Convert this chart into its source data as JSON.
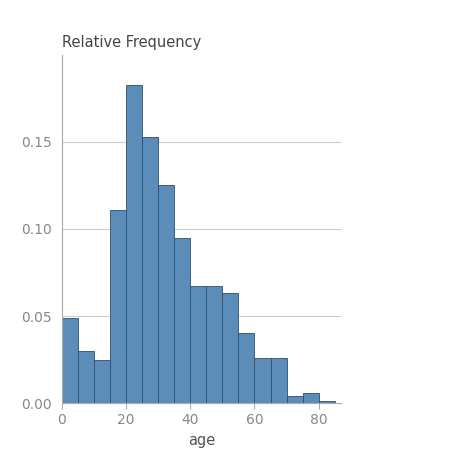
{
  "bin_edges": [
    0,
    5,
    10,
    15,
    20,
    25,
    30,
    35,
    40,
    45,
    50,
    55,
    60,
    65,
    70,
    75,
    80,
    85
  ],
  "heights": [
    0.049,
    0.03,
    0.025,
    0.111,
    0.183,
    0.153,
    0.125,
    0.095,
    0.067,
    0.067,
    0.063,
    0.04,
    0.026,
    0.026,
    0.004,
    0.006,
    0.001
  ],
  "bar_color": "#5b8db8",
  "bar_edgecolor": "#2c4f6e",
  "top_label": "Relative Frequency",
  "xlabel": "age",
  "xlim": [
    0,
    87
  ],
  "ylim": [
    0,
    0.2
  ],
  "yticks": [
    0,
    0.05,
    0.1,
    0.15
  ],
  "xticks": [
    0,
    20,
    40,
    60,
    80
  ],
  "grid_color": "#cccccc",
  "bg_color": "#ffffff",
  "label_fontsize": 10.5
}
